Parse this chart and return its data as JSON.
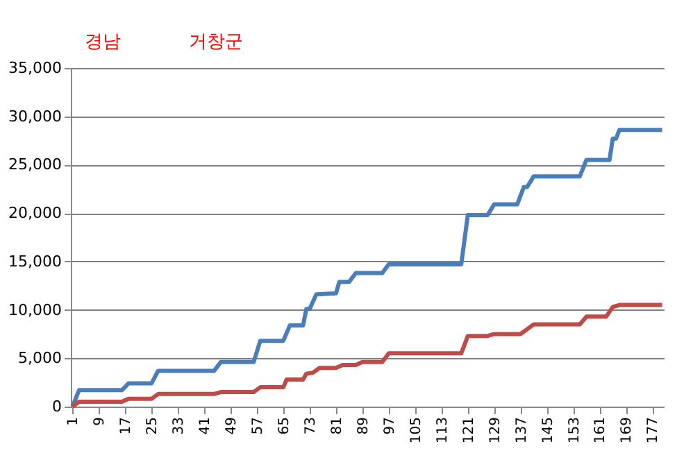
{
  "chart_data": {
    "type": "line",
    "title": "경남",
    "annotations": [
      "거창군"
    ],
    "xlim": [
      0.5,
      180.5
    ],
    "xticks": [
      1,
      9,
      17,
      25,
      33,
      41,
      49,
      57,
      65,
      73,
      81,
      89,
      97,
      105,
      113,
      121,
      129,
      137,
      145,
      153,
      161,
      169,
      177
    ],
    "ylim": [
      0,
      35000
    ],
    "yticks": [
      0,
      {
        "value": 5000,
        "label": "5,000"
      },
      {
        "value": 10000,
        "label": "10,000"
      },
      {
        "value": 15000,
        "label": "15,000"
      },
      {
        "value": 20000,
        "label": "20,000"
      },
      {
        "value": 25000,
        "label": "25,000"
      },
      {
        "value": 30000,
        "label": "30,000"
      },
      {
        "value": 35000,
        "label": "35,000"
      }
    ],
    "grid": "y",
    "legend": false,
    "marker": "none",
    "line_style": "solid",
    "series": [
      {
        "color": "#4a7ebb",
        "x": [
          1,
          3,
          16,
          18,
          25,
          27,
          44,
          46,
          56,
          58,
          65,
          67,
          71,
          72,
          73,
          75,
          81,
          82,
          85,
          87,
          95,
          97,
          119,
          121,
          127,
          129,
          136,
          138,
          139,
          141,
          155,
          157,
          164,
          165,
          166,
          167,
          180
        ],
        "values": [
          0,
          1700,
          1700,
          2400,
          2400,
          3700,
          3700,
          4600,
          4600,
          6800,
          6800,
          8400,
          8400,
          10100,
          10100,
          11600,
          11700,
          12900,
          12900,
          13800,
          13800,
          14700,
          14700,
          19800,
          19800,
          20900,
          20900,
          22700,
          22700,
          23800,
          23800,
          25500,
          25500,
          27700,
          27700,
          28600,
          28600
        ]
      },
      {
        "color": "#be4b48",
        "x": [
          1,
          3,
          16,
          18,
          25,
          27,
          44,
          46,
          56,
          58,
          65,
          66,
          71,
          72,
          74,
          76,
          81,
          83,
          87,
          89,
          95,
          97,
          119,
          121,
          127,
          129,
          137,
          139,
          141,
          155,
          157,
          163,
          165,
          167,
          180
        ],
        "values": [
          0,
          500,
          500,
          800,
          800,
          1300,
          1300,
          1500,
          1500,
          2000,
          2000,
          2800,
          2800,
          3400,
          3500,
          4000,
          4000,
          4300,
          4300,
          4600,
          4600,
          5500,
          5500,
          7300,
          7300,
          7500,
          7500,
          8000,
          8500,
          8500,
          9300,
          9300,
          10300,
          10500,
          10500
        ]
      }
    ]
  }
}
